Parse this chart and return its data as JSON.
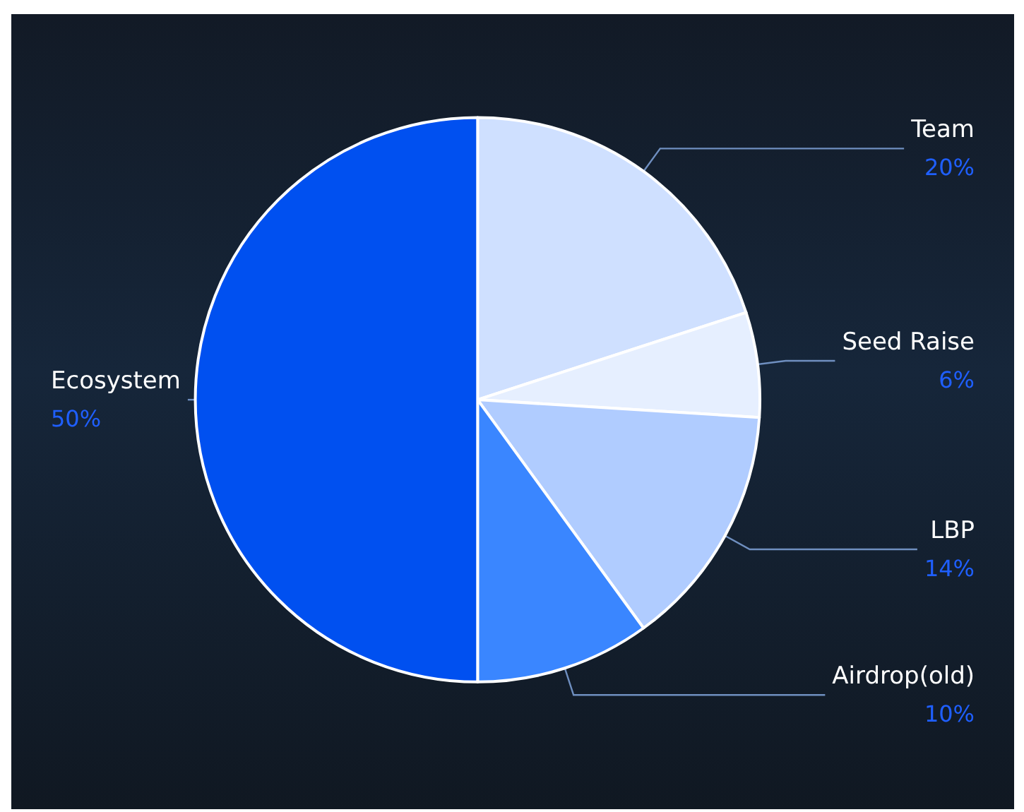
{
  "chart_data": {
    "type": "pie",
    "categories": [
      "Team",
      "Seed Raise",
      "LBP",
      "Airdrop(old)",
      "Ecosystem"
    ],
    "values": [
      20,
      6,
      14,
      10,
      50
    ],
    "value_labels": [
      "20%",
      "6%",
      "14%",
      "10%",
      "50%"
    ],
    "colors": [
      "#cfe0ff",
      "#e6efff",
      "#b0ccff",
      "#3a86ff",
      "#0050f0"
    ],
    "legend": false
  }
}
